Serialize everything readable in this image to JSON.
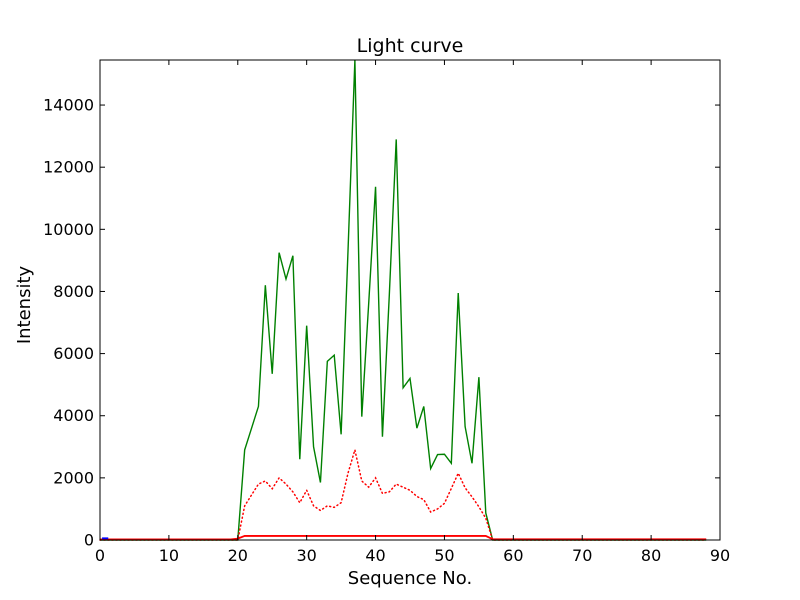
{
  "figure": {
    "title": "Light curve",
    "xlabel": "Sequence No.",
    "ylabel": "Intensity",
    "background_color": "#ffffff",
    "frame_color": "#000000"
  },
  "chart_data": {
    "type": "line",
    "title": "Light curve",
    "xlabel": "Sequence No.",
    "ylabel": "Intensity",
    "xlim": [
      0,
      90
    ],
    "ylim": [
      0,
      15450
    ],
    "xticks": [
      0,
      10,
      20,
      30,
      40,
      50,
      60,
      70,
      80,
      90
    ],
    "yticks": [
      0,
      2000,
      4000,
      6000,
      8000,
      10000,
      12000,
      14000
    ],
    "grid": false,
    "legend": "none",
    "tick_direction": "in",
    "series": [
      {
        "name": "green-intensity-line",
        "color": "#008000",
        "style": "solid",
        "line_width": 1.4,
        "x_start": 0,
        "x_step": 1,
        "values": [
          0,
          0,
          0,
          0,
          0,
          0,
          0,
          0,
          0,
          0,
          0,
          0,
          0,
          0,
          0,
          0,
          0,
          0,
          0,
          0,
          0,
          2900,
          3600,
          4300,
          8200,
          5350,
          9250,
          8400,
          9150,
          2600,
          6900,
          3000,
          1850,
          5750,
          5950,
          3400,
          9300,
          15450,
          3970,
          7600,
          11370,
          3325,
          7900,
          12895,
          4900,
          5200,
          3600,
          4300,
          2300,
          2750,
          2760,
          2470,
          7950,
          3650,
          2470,
          5240,
          870,
          0,
          0,
          0,
          0,
          0,
          0,
          0,
          0,
          0,
          0,
          0,
          0,
          0,
          0,
          0,
          0,
          0,
          0,
          0,
          0,
          0,
          0,
          0,
          0,
          0,
          0,
          0,
          0,
          0,
          0,
          0,
          0
        ]
      },
      {
        "name": "red-dotted-line",
        "color": "#ff0000",
        "style": "dotted",
        "line_width": 1.5,
        "x_start": 0,
        "x_step": 1,
        "values": [
          0,
          0,
          0,
          0,
          0,
          0,
          0,
          0,
          0,
          0,
          0,
          0,
          0,
          0,
          0,
          0,
          0,
          0,
          0,
          0,
          0,
          1100,
          1450,
          1800,
          1900,
          1650,
          2000,
          1800,
          1550,
          1200,
          1600,
          1100,
          950,
          1100,
          1050,
          1200,
          2150,
          2900,
          1900,
          1700,
          2000,
          1500,
          1550,
          1800,
          1700,
          1600,
          1400,
          1300,
          900,
          1000,
          1180,
          1660,
          2150,
          1680,
          1390,
          1070,
          700,
          0,
          0,
          0,
          0,
          0,
          0,
          0,
          0,
          0,
          0,
          0,
          0,
          0,
          0,
          0,
          0,
          0,
          0,
          0,
          0,
          0,
          0,
          0,
          0,
          0,
          0,
          0,
          0,
          0,
          0,
          0,
          0
        ]
      },
      {
        "name": "red-solid-line",
        "color": "#ff0000",
        "style": "solid",
        "line_width": 1.8,
        "x_start": 0,
        "x_step": 1,
        "values": [
          20,
          20,
          20,
          20,
          20,
          20,
          20,
          20,
          20,
          20,
          20,
          20,
          20,
          20,
          20,
          20,
          20,
          20,
          20,
          20,
          45,
          130,
          130,
          130,
          130,
          130,
          130,
          130,
          130,
          130,
          130,
          130,
          130,
          130,
          130,
          130,
          130,
          130,
          130,
          130,
          130,
          130,
          130,
          130,
          130,
          130,
          130,
          130,
          130,
          130,
          130,
          130,
          130,
          130,
          130,
          130,
          130,
          25,
          25,
          25,
          25,
          25,
          25,
          25,
          25,
          25,
          25,
          25,
          25,
          25,
          25,
          25,
          25,
          25,
          25,
          25,
          25,
          25,
          25,
          25,
          25,
          25,
          25,
          25,
          25,
          25,
          25,
          25,
          25
        ]
      },
      {
        "name": "blue-start-segment",
        "color": "#0000ff",
        "style": "solid",
        "line_width": 1.8,
        "x": [
          0.3,
          1.2
        ],
        "values": [
          55,
          55
        ]
      }
    ]
  }
}
